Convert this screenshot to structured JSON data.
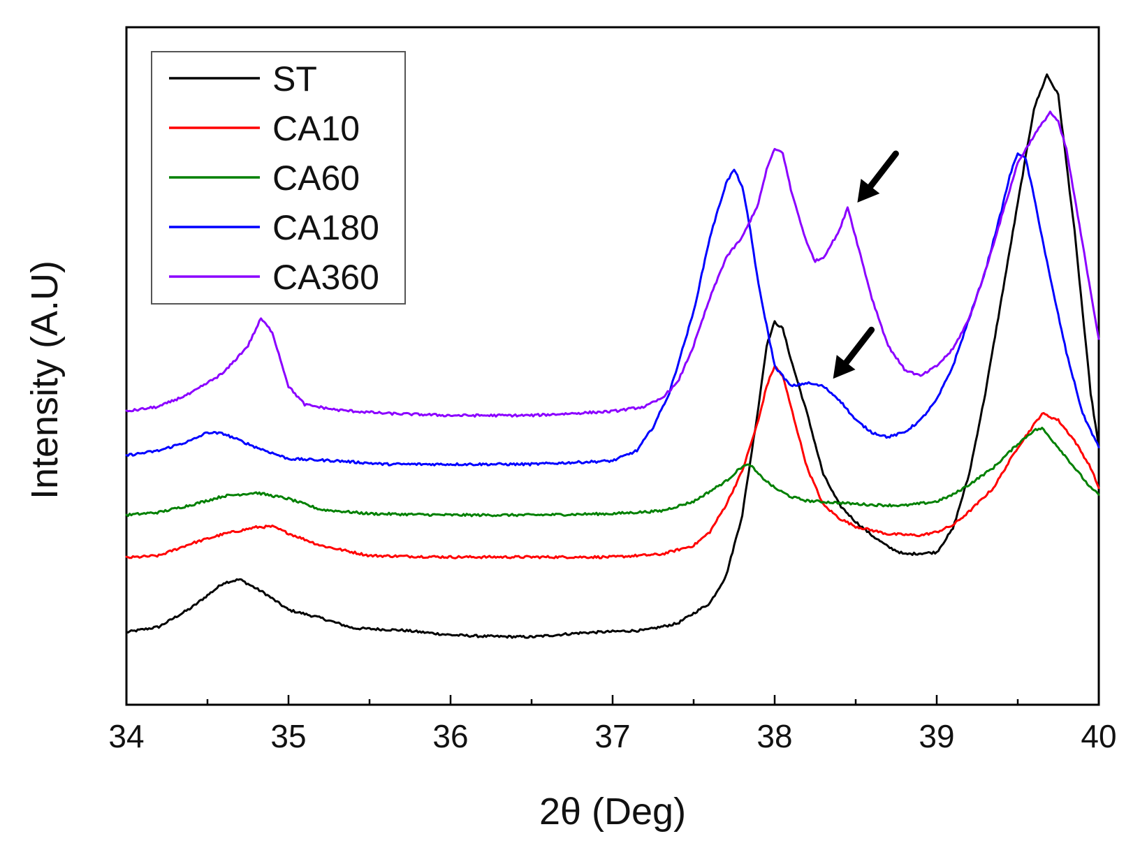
{
  "chart_data": {
    "type": "line",
    "title": "",
    "xlabel": "2θ (Deg)",
    "ylabel": "Intensity (A.U)",
    "xlim": [
      34,
      40
    ],
    "ylim": [
      0,
      100
    ],
    "xticks": [
      34,
      35,
      36,
      37,
      38,
      39,
      40
    ],
    "xtick_labels": [
      "34",
      "35",
      "36",
      "37",
      "38",
      "39",
      "40"
    ],
    "y_tick_labels_shown": false,
    "grid": false,
    "legend_position": "top-left",
    "series": [
      {
        "name": "ST",
        "color": "#000000",
        "points": [
          [
            34.0,
            10.7
          ],
          [
            34.2,
            11.5
          ],
          [
            34.4,
            14.3
          ],
          [
            34.6,
            18.0
          ],
          [
            34.7,
            18.5
          ],
          [
            34.85,
            16.5
          ],
          [
            35.0,
            14.0
          ],
          [
            35.2,
            12.8
          ],
          [
            35.4,
            11.3
          ],
          [
            35.7,
            11.0
          ],
          [
            36.0,
            10.3
          ],
          [
            36.2,
            10.1
          ],
          [
            36.5,
            10.0
          ],
          [
            36.8,
            10.6
          ],
          [
            37.0,
            10.8
          ],
          [
            37.2,
            11.0
          ],
          [
            37.4,
            12.0
          ],
          [
            37.5,
            13.5
          ],
          [
            37.6,
            15.0
          ],
          [
            37.7,
            19.0
          ],
          [
            37.8,
            28.0
          ],
          [
            37.9,
            44.0
          ],
          [
            37.95,
            53.0
          ],
          [
            38.0,
            56.5
          ],
          [
            38.05,
            55.5
          ],
          [
            38.1,
            51.0
          ],
          [
            38.2,
            43.0
          ],
          [
            38.3,
            34.0
          ],
          [
            38.4,
            29.5
          ],
          [
            38.5,
            27.0
          ],
          [
            38.6,
            25.0
          ],
          [
            38.7,
            23.3
          ],
          [
            38.8,
            22.2
          ],
          [
            39.0,
            22.5
          ],
          [
            39.1,
            26.0
          ],
          [
            39.2,
            34.0
          ],
          [
            39.3,
            46.0
          ],
          [
            39.4,
            60.0
          ],
          [
            39.5,
            74.0
          ],
          [
            39.6,
            88.0
          ],
          [
            39.68,
            93.0
          ],
          [
            39.75,
            90.0
          ],
          [
            39.85,
            70.0
          ],
          [
            39.95,
            46.0
          ],
          [
            40.0,
            38.0
          ]
        ]
      },
      {
        "name": "CA10",
        "color": "#ff0000",
        "points": [
          [
            34.0,
            21.7
          ],
          [
            34.2,
            22.0
          ],
          [
            34.4,
            23.8
          ],
          [
            34.6,
            25.2
          ],
          [
            34.8,
            26.2
          ],
          [
            34.9,
            26.3
          ],
          [
            35.0,
            25.3
          ],
          [
            35.2,
            23.5
          ],
          [
            35.5,
            22.0
          ],
          [
            36.0,
            21.8
          ],
          [
            36.5,
            21.8
          ],
          [
            37.0,
            21.8
          ],
          [
            37.3,
            22.2
          ],
          [
            37.5,
            23.5
          ],
          [
            37.6,
            25.5
          ],
          [
            37.7,
            29.5
          ],
          [
            37.8,
            34.5
          ],
          [
            37.9,
            42.0
          ],
          [
            37.95,
            47.0
          ],
          [
            38.0,
            50.0
          ],
          [
            38.05,
            48.5
          ],
          [
            38.1,
            44.0
          ],
          [
            38.2,
            35.0
          ],
          [
            38.3,
            29.5
          ],
          [
            38.4,
            27.5
          ],
          [
            38.5,
            26.3
          ],
          [
            38.7,
            25.2
          ],
          [
            38.9,
            25.0
          ],
          [
            39.0,
            25.5
          ],
          [
            39.1,
            26.5
          ],
          [
            39.2,
            28.5
          ],
          [
            39.35,
            32.0
          ],
          [
            39.5,
            38.0
          ],
          [
            39.65,
            43.0
          ],
          [
            39.75,
            42.0
          ],
          [
            39.85,
            39.0
          ],
          [
            39.95,
            35.0
          ],
          [
            40.0,
            32.0
          ]
        ]
      },
      {
        "name": "CA60",
        "color": "#008000",
        "points": [
          [
            34.0,
            28.0
          ],
          [
            34.2,
            28.4
          ],
          [
            34.4,
            29.5
          ],
          [
            34.6,
            30.8
          ],
          [
            34.8,
            31.3
          ],
          [
            35.0,
            30.4
          ],
          [
            35.2,
            28.8
          ],
          [
            35.5,
            28.2
          ],
          [
            36.0,
            28.0
          ],
          [
            36.5,
            28.0
          ],
          [
            37.0,
            28.2
          ],
          [
            37.3,
            28.6
          ],
          [
            37.5,
            30.0
          ],
          [
            37.6,
            31.5
          ],
          [
            37.7,
            33.0
          ],
          [
            37.8,
            35.2
          ],
          [
            37.85,
            35.4
          ],
          [
            37.9,
            34.0
          ],
          [
            38.0,
            32.0
          ],
          [
            38.1,
            30.7
          ],
          [
            38.2,
            30.1
          ],
          [
            38.4,
            29.8
          ],
          [
            38.6,
            29.5
          ],
          [
            38.8,
            29.4
          ],
          [
            39.0,
            30.0
          ],
          [
            39.1,
            31.0
          ],
          [
            39.2,
            32.5
          ],
          [
            39.35,
            35.0
          ],
          [
            39.5,
            38.5
          ],
          [
            39.6,
            40.5
          ],
          [
            39.65,
            40.8
          ],
          [
            39.75,
            38.0
          ],
          [
            39.85,
            35.0
          ],
          [
            39.95,
            32.0
          ],
          [
            40.0,
            31.0
          ]
        ]
      },
      {
        "name": "CA180",
        "color": "#0000ff",
        "points": [
          [
            34.0,
            36.8
          ],
          [
            34.2,
            37.5
          ],
          [
            34.4,
            39.0
          ],
          [
            34.5,
            40.2
          ],
          [
            34.6,
            40.0
          ],
          [
            34.8,
            38.0
          ],
          [
            35.0,
            36.3
          ],
          [
            35.3,
            36.0
          ],
          [
            35.6,
            35.5
          ],
          [
            36.0,
            35.5
          ],
          [
            36.5,
            35.5
          ],
          [
            37.0,
            36.0
          ],
          [
            37.15,
            37.5
          ],
          [
            37.25,
            41.0
          ],
          [
            37.35,
            46.0
          ],
          [
            37.5,
            58.0
          ],
          [
            37.6,
            69.0
          ],
          [
            37.7,
            77.0
          ],
          [
            37.75,
            79.0
          ],
          [
            37.8,
            76.5
          ],
          [
            37.85,
            70.0
          ],
          [
            37.9,
            62.0
          ],
          [
            38.0,
            50.0
          ],
          [
            38.1,
            47.0
          ],
          [
            38.2,
            47.5
          ],
          [
            38.3,
            47.0
          ],
          [
            38.4,
            45.0
          ],
          [
            38.5,
            42.0
          ],
          [
            38.6,
            40.2
          ],
          [
            38.7,
            39.5
          ],
          [
            38.8,
            40.2
          ],
          [
            38.9,
            42.0
          ],
          [
            39.0,
            45.0
          ],
          [
            39.1,
            50.0
          ],
          [
            39.2,
            57.0
          ],
          [
            39.3,
            64.0
          ],
          [
            39.4,
            73.0
          ],
          [
            39.45,
            78.0
          ],
          [
            39.5,
            81.5
          ],
          [
            39.55,
            80.5
          ],
          [
            39.6,
            75.0
          ],
          [
            39.7,
            63.0
          ],
          [
            39.8,
            52.0
          ],
          [
            39.9,
            43.0
          ],
          [
            40.0,
            38.0
          ]
        ]
      },
      {
        "name": "CA360",
        "color": "#8b00ff",
        "points": [
          [
            34.0,
            43.3
          ],
          [
            34.2,
            44.0
          ],
          [
            34.4,
            46.0
          ],
          [
            34.6,
            49.0
          ],
          [
            34.75,
            53.0
          ],
          [
            34.83,
            57.0
          ],
          [
            34.9,
            55.0
          ],
          [
            35.0,
            47.0
          ],
          [
            35.1,
            44.3
          ],
          [
            35.3,
            43.5
          ],
          [
            35.6,
            43.0
          ],
          [
            36.0,
            42.7
          ],
          [
            36.5,
            42.7
          ],
          [
            37.0,
            43.3
          ],
          [
            37.2,
            44.0
          ],
          [
            37.3,
            45.2
          ],
          [
            37.4,
            47.5
          ],
          [
            37.5,
            53.0
          ],
          [
            37.6,
            60.0
          ],
          [
            37.7,
            66.0
          ],
          [
            37.8,
            69.0
          ],
          [
            37.9,
            74.0
          ],
          [
            37.95,
            79.0
          ],
          [
            38.0,
            82.0
          ],
          [
            38.05,
            81.5
          ],
          [
            38.1,
            76.0
          ],
          [
            38.2,
            68.0
          ],
          [
            38.25,
            65.5
          ],
          [
            38.3,
            66.0
          ],
          [
            38.4,
            70.0
          ],
          [
            38.45,
            73.5
          ],
          [
            38.5,
            69.0
          ],
          [
            38.6,
            60.0
          ],
          [
            38.7,
            53.0
          ],
          [
            38.8,
            49.5
          ],
          [
            38.9,
            48.5
          ],
          [
            39.0,
            50.0
          ],
          [
            39.1,
            52.5
          ],
          [
            39.2,
            57.0
          ],
          [
            39.3,
            64.0
          ],
          [
            39.4,
            72.0
          ],
          [
            39.5,
            80.0
          ],
          [
            39.6,
            84.0
          ],
          [
            39.7,
            87.5
          ],
          [
            39.75,
            86.0
          ],
          [
            39.8,
            82.0
          ],
          [
            39.9,
            68.0
          ],
          [
            40.0,
            54.0
          ]
        ]
      }
    ],
    "annotations": [
      {
        "type": "arrow",
        "label": "",
        "points_to": "CA360 shoulder near 38.45",
        "target": [
          38.45,
          73.5
        ]
      },
      {
        "type": "arrow",
        "label": "",
        "points_to": "CA180 shoulder near 38.3",
        "target": [
          38.3,
          47.5
        ]
      }
    ]
  }
}
